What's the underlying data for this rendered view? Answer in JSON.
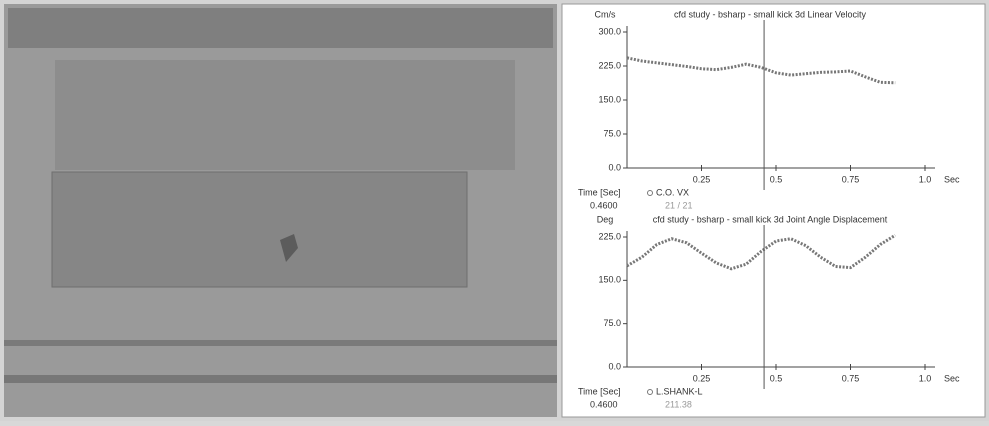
{
  "chart_data": [
    {
      "type": "line",
      "title": "cfd study - bsharp - small kick 3d Linear Velocity",
      "y_unit": "Cm/s",
      "x_unit": "Sec",
      "x": [
        0,
        0.05,
        0.1,
        0.15,
        0.2,
        0.25,
        0.3,
        0.35,
        0.4,
        0.45,
        0.5,
        0.55,
        0.6,
        0.65,
        0.7,
        0.75,
        0.8,
        0.85,
        0.9
      ],
      "series": [
        {
          "name": "C.O. VX",
          "color": "#777777",
          "values": [
            243,
            236,
            232,
            228,
            224,
            219,
            217,
            222,
            229,
            222,
            210,
            205,
            208,
            211,
            212,
            214,
            201,
            189,
            188
          ]
        }
      ],
      "xlim": [
        0,
        1
      ],
      "ylim": [
        0,
        300
      ],
      "xticks": [
        0.25,
        0.5,
        0.75,
        {
          "value": 1,
          "label": "1.0"
        }
      ],
      "yticks": [
        {
          "value": 0,
          "label": "0.0"
        },
        {
          "value": 75,
          "label": "75.0"
        },
        {
          "value": 150,
          "label": "150.0"
        },
        {
          "value": 225,
          "label": "225.0"
        },
        {
          "value": 300,
          "label": "300.0"
        }
      ],
      "cursor_x": 0.46,
      "readout": {
        "label": "Time [Sec]",
        "time": "0.4600",
        "value": "21 / 21"
      }
    },
    {
      "type": "line",
      "title": "cfd study - bsharp - small kick 3d Joint Angle Displacement",
      "y_unit": "Deg",
      "x_unit": "Sec",
      "x": [
        0,
        0.05,
        0.1,
        0.15,
        0.2,
        0.25,
        0.3,
        0.35,
        0.4,
        0.45,
        0.5,
        0.55,
        0.6,
        0.65,
        0.7,
        0.75,
        0.8,
        0.85,
        0.9
      ],
      "series": [
        {
          "name": "L.SHANK-L",
          "color": "#777777",
          "values": [
            175,
            190,
            212,
            222,
            215,
            197,
            180,
            170,
            178,
            200,
            218,
            222,
            210,
            190,
            174,
            172,
            190,
            212,
            228
          ]
        }
      ],
      "xlim": [
        0,
        1
      ],
      "ylim": [
        0,
        225
      ],
      "xticks": [
        0.25,
        0.5,
        0.75,
        {
          "value": 1,
          "label": "1.0"
        }
      ],
      "yticks": [
        {
          "value": 0,
          "label": "0.0"
        },
        {
          "value": 75,
          "label": "75.0"
        },
        {
          "value": 150,
          "label": "150.0"
        },
        {
          "value": 225,
          "label": "225.0"
        }
      ],
      "cursor_x": 0.46,
      "readout": {
        "label": "Time [Sec]",
        "time": "0.4600",
        "value": "211.38"
      }
    }
  ]
}
